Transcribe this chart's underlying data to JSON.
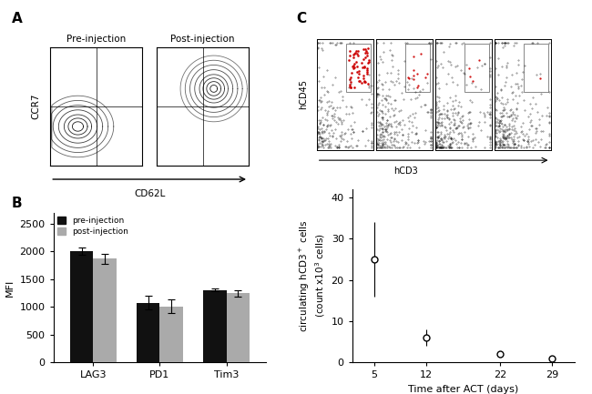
{
  "panel_labels": [
    "A",
    "B",
    "C"
  ],
  "bar_categories": [
    "LAG3",
    "PD1",
    "Tim3"
  ],
  "bar_pre": [
    2010,
    1080,
    1310
  ],
  "bar_post": [
    1870,
    1010,
    1250
  ],
  "bar_pre_err": [
    60,
    120,
    30
  ],
  "bar_post_err": [
    90,
    120,
    55
  ],
  "bar_color_pre": "#111111",
  "bar_color_post": "#aaaaaa",
  "bar_ylabel": "MFI",
  "bar_yticks": [
    0,
    500,
    1000,
    1500,
    2000,
    2500
  ],
  "bar_ylim": [
    0,
    2700
  ],
  "legend_labels": [
    "pre-injection",
    "post-injection"
  ],
  "line_x": [
    5,
    12,
    22,
    29
  ],
  "line_y": [
    25,
    6,
    2,
    1
  ],
  "line_yerr": [
    9,
    2,
    0.5,
    0.3
  ],
  "line_xlabel": "Time after ACT (days)",
  "line_ylabel": "circulating hCD3$^+$ cells\n(count x10$^3$ cells)",
  "line_yticks": [
    0,
    10,
    20,
    30,
    40
  ],
  "line_ylim": [
    0,
    42
  ],
  "line_xticks": [
    5,
    12,
    22,
    29
  ],
  "flow_A_ylabel": "CCR7",
  "flow_A_xlabel": "CD62L",
  "flow_C_ylabel": "hCD45",
  "flow_C_xlabel": "hCD3",
  "bg_color": "#ffffff"
}
